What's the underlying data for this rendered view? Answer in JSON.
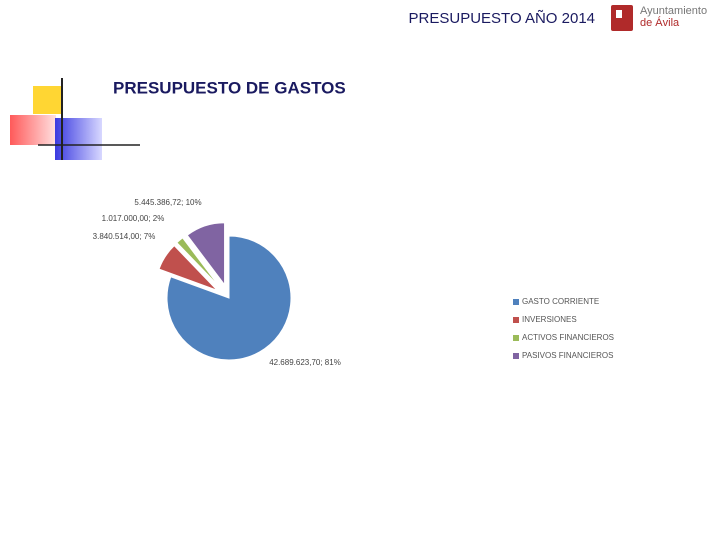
{
  "header": {
    "title": "PRESUPUESTO AÑO 2014",
    "logo_line1": "Ayuntamiento",
    "logo_line2": "de Ávila"
  },
  "chart_data": {
    "type": "pie",
    "title": "PRESUPUESTO DE GASTOS",
    "categories": [
      "GASTO CORRIENTE",
      "INVERSIONES",
      "ACTIVOS FINANCIEROS",
      "PASIVOS FINANCIEROS"
    ],
    "values": [
      42689623.7,
      3840514.0,
      1017000.0,
      5445386.72
    ],
    "value_labels": [
      "42.689.623,70; 81%",
      "3.840.514,00; 7%",
      "1.017.000,00; 2%",
      "5.445.386,72; 10%"
    ],
    "colors": [
      "#4f81bd",
      "#c0504d",
      "#9bbb59",
      "#8064a2"
    ],
    "legend": "right"
  }
}
